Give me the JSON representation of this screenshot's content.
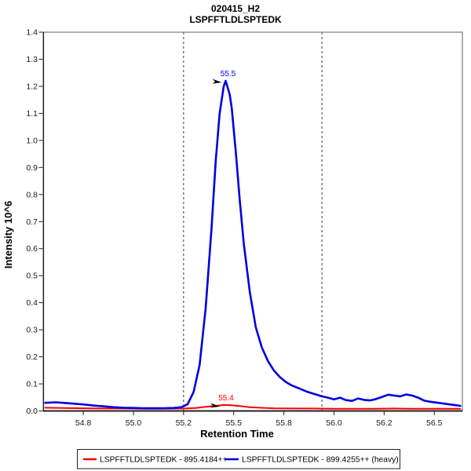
{
  "title": {
    "line1": "020415_H2",
    "line2": "LSPFFTLDLSPTEDK"
  },
  "axes": {
    "xlabel": "Retention Time",
    "ylabel": "Intensity 10^6"
  },
  "legend": {
    "position": "bottom",
    "items": [
      {
        "label": "LSPFFTLDLSPTEDK - 895.4184++",
        "color": "#ff0000"
      },
      {
        "label": "LSPFFTLDLSPTEDK - 899.4255++ (heavy)",
        "color": "#0000e0"
      }
    ]
  },
  "colors": {
    "light_trace": "#ff0000",
    "heavy_trace": "#0000e0",
    "boundary_line": "#3a3a3a",
    "frame": "#7a7a7a",
    "axis": "#222222",
    "annotation_arrow": "#000000"
  },
  "chart_data": {
    "type": "line",
    "title": "020415_H2",
    "subtitle": "LSPFFTLDLSPTEDK",
    "xlabel": "Retention Time",
    "ylabel": "Intensity 10^6",
    "xlim": [
      54.55,
      56.64
    ],
    "ylim": [
      0,
      1.4
    ],
    "grid": false,
    "legend_position": "bottom",
    "x_ticks": {
      "values": [
        54.75,
        55.0,
        55.25,
        55.5,
        55.75,
        56.0,
        56.25,
        56.5
      ],
      "labels": [
        "54.8",
        "55.0",
        "55.2",
        "55.5",
        "55.8",
        "56.0",
        "56.2",
        "56.5"
      ]
    },
    "y_ticks": {
      "values": [
        0,
        0.1,
        0.2,
        0.3,
        0.4,
        0.5,
        0.6,
        0.7,
        0.8,
        0.9,
        1.0,
        1.1,
        1.2,
        1.3,
        1.4
      ],
      "labels": [
        "0.0",
        "0.1",
        "0.2",
        "0.3",
        "0.4",
        "0.5",
        "0.6",
        "0.7",
        "0.8",
        "0.9",
        "1.0",
        "1.1",
        "1.2",
        "1.3",
        "1.4"
      ]
    },
    "integration_boundaries": [
      55.25,
      55.94
    ],
    "series": [
      {
        "name": "LSPFFTLDLSPTEDK - 895.4184++",
        "color": "#ff0000",
        "width": 2,
        "points": [
          [
            54.56,
            0.012
          ],
          [
            54.65,
            0.011
          ],
          [
            54.75,
            0.01
          ],
          [
            54.85,
            0.009
          ],
          [
            54.95,
            0.009
          ],
          [
            55.05,
            0.008
          ],
          [
            55.15,
            0.008
          ],
          [
            55.25,
            0.009
          ],
          [
            55.31,
            0.011
          ],
          [
            55.36,
            0.015
          ],
          [
            55.41,
            0.019
          ],
          [
            55.45,
            0.022
          ],
          [
            55.49,
            0.021
          ],
          [
            55.53,
            0.018
          ],
          [
            55.58,
            0.014
          ],
          [
            55.63,
            0.012
          ],
          [
            55.7,
            0.01
          ],
          [
            55.8,
            0.009
          ],
          [
            55.9,
            0.009
          ],
          [
            56.0,
            0.008
          ],
          [
            56.1,
            0.008
          ],
          [
            56.2,
            0.008
          ],
          [
            56.3,
            0.009
          ],
          [
            56.4,
            0.008
          ],
          [
            56.5,
            0.008
          ],
          [
            56.6,
            0.008
          ],
          [
            56.63,
            0.008
          ]
        ]
      },
      {
        "name": "LSPFFTLDLSPTEDK - 899.4255++ (heavy)",
        "color": "#0000e0",
        "width": 2.6,
        "points": [
          [
            54.56,
            0.03
          ],
          [
            54.61,
            0.032
          ],
          [
            54.65,
            0.03
          ],
          [
            54.7,
            0.027
          ],
          [
            54.75,
            0.024
          ],
          [
            54.8,
            0.02
          ],
          [
            54.85,
            0.017
          ],
          [
            54.9,
            0.014
          ],
          [
            54.95,
            0.012
          ],
          [
            55.0,
            0.011
          ],
          [
            55.05,
            0.01
          ],
          [
            55.1,
            0.01
          ],
          [
            55.15,
            0.01
          ],
          [
            55.2,
            0.011
          ],
          [
            55.24,
            0.014
          ],
          [
            55.27,
            0.025
          ],
          [
            55.3,
            0.07
          ],
          [
            55.33,
            0.17
          ],
          [
            55.36,
            0.38
          ],
          [
            55.39,
            0.68
          ],
          [
            55.41,
            0.92
          ],
          [
            55.43,
            1.1
          ],
          [
            55.45,
            1.2
          ],
          [
            55.46,
            1.22
          ],
          [
            55.48,
            1.17
          ],
          [
            55.49,
            1.12
          ],
          [
            55.51,
            0.96
          ],
          [
            55.53,
            0.78
          ],
          [
            55.55,
            0.62
          ],
          [
            55.58,
            0.44
          ],
          [
            55.61,
            0.31
          ],
          [
            55.64,
            0.235
          ],
          [
            55.67,
            0.185
          ],
          [
            55.7,
            0.15
          ],
          [
            55.73,
            0.125
          ],
          [
            55.76,
            0.107
          ],
          [
            55.79,
            0.094
          ],
          [
            55.83,
            0.082
          ],
          [
            55.87,
            0.07
          ],
          [
            55.91,
            0.061
          ],
          [
            55.94,
            0.054
          ],
          [
            55.97,
            0.049
          ],
          [
            56.0,
            0.043
          ],
          [
            56.03,
            0.049
          ],
          [
            56.06,
            0.04
          ],
          [
            56.09,
            0.037
          ],
          [
            56.12,
            0.046
          ],
          [
            56.15,
            0.041
          ],
          [
            56.18,
            0.039
          ],
          [
            56.21,
            0.044
          ],
          [
            56.24,
            0.052
          ],
          [
            56.27,
            0.06
          ],
          [
            56.3,
            0.057
          ],
          [
            56.33,
            0.054
          ],
          [
            56.36,
            0.061
          ],
          [
            56.39,
            0.057
          ],
          [
            56.42,
            0.049
          ],
          [
            56.45,
            0.038
          ],
          [
            56.48,
            0.034
          ],
          [
            56.51,
            0.031
          ],
          [
            56.54,
            0.028
          ],
          [
            56.57,
            0.025
          ],
          [
            56.6,
            0.022
          ],
          [
            56.63,
            0.019
          ]
        ]
      }
    ],
    "annotations": [
      {
        "text": "55.4",
        "color": "#ff0000",
        "x": 55.45,
        "y": 0.022,
        "arrow": true
      },
      {
        "text": "55.5",
        "color": "#0000e0",
        "x": 55.46,
        "y": 1.22,
        "arrow": true
      }
    ]
  }
}
